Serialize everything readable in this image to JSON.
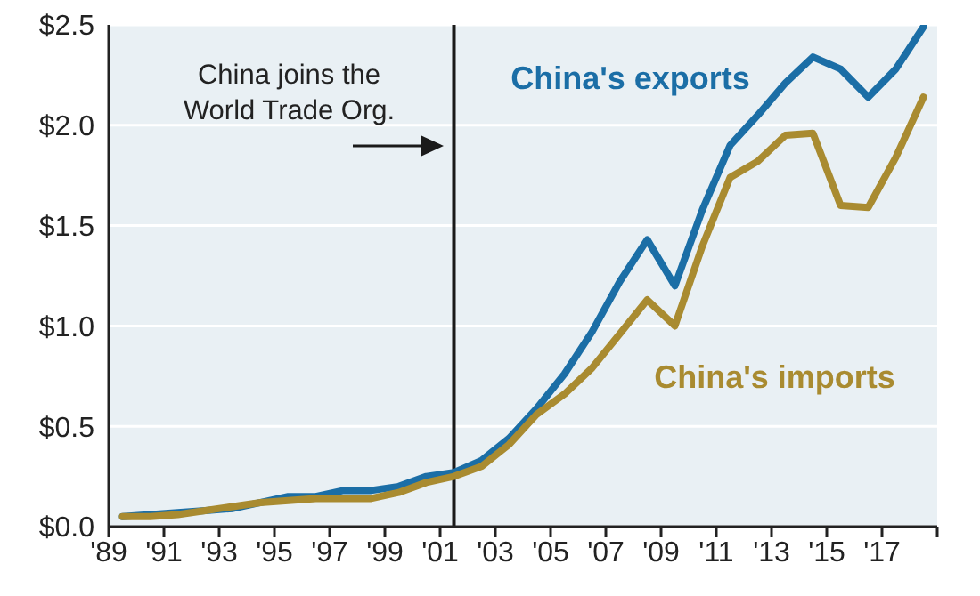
{
  "chart_data": {
    "type": "line",
    "x": [
      1989.5,
      1990.5,
      1991.5,
      1992.5,
      1993.5,
      1994.5,
      1995.5,
      1996.5,
      1997.5,
      1998.5,
      1999.5,
      2000.5,
      2001.5,
      2002.5,
      2003.5,
      2004.5,
      2005.5,
      2006.5,
      2007.5,
      2008.5,
      2009.5,
      2010.5,
      2011.5,
      2012.5,
      2013.5,
      2014.5,
      2015.5,
      2016.5,
      2017.5,
      2018.5
    ],
    "series": [
      {
        "name": "China's exports",
        "color": "#1b6ea6",
        "values": [
          0.05,
          0.06,
          0.07,
          0.08,
          0.09,
          0.12,
          0.15,
          0.15,
          0.18,
          0.18,
          0.2,
          0.25,
          0.27,
          0.33,
          0.44,
          0.59,
          0.76,
          0.97,
          1.22,
          1.43,
          1.2,
          1.58,
          1.9,
          2.05,
          2.21,
          2.34,
          2.28,
          2.14,
          2.28,
          2.49
        ]
      },
      {
        "name": "China's imports",
        "color": "#a98b30",
        "values": [
          0.05,
          0.05,
          0.06,
          0.08,
          0.1,
          0.12,
          0.13,
          0.14,
          0.14,
          0.14,
          0.17,
          0.22,
          0.25,
          0.3,
          0.41,
          0.56,
          0.66,
          0.79,
          0.96,
          1.13,
          1.0,
          1.4,
          1.74,
          1.82,
          1.95,
          1.96,
          1.6,
          1.59,
          1.84,
          2.14
        ]
      }
    ],
    "xlim": [
      1989,
      2019
    ],
    "xticks": [
      {
        "value": 1989,
        "label": "'89"
      },
      {
        "value": 1991,
        "label": "'91"
      },
      {
        "value": 1993,
        "label": "'93"
      },
      {
        "value": 1995,
        "label": "'95"
      },
      {
        "value": 1997,
        "label": "'97"
      },
      {
        "value": 1999,
        "label": "'99"
      },
      {
        "value": 2001,
        "label": "'01"
      },
      {
        "value": 2003,
        "label": "'03"
      },
      {
        "value": 2005,
        "label": "'05"
      },
      {
        "value": 2007,
        "label": "'07"
      },
      {
        "value": 2009,
        "label": "'09"
      },
      {
        "value": 2011,
        "label": "'11"
      },
      {
        "value": 2013,
        "label": "'13"
      },
      {
        "value": 2015,
        "label": "'15"
      },
      {
        "value": 2017,
        "label": "'17"
      },
      {
        "value": 2019,
        "label": null
      }
    ],
    "ylim": [
      0,
      2.5
    ],
    "yticks": [
      {
        "value": 0,
        "label": "$0.0"
      },
      {
        "value": 0.5,
        "label": "$0.5"
      },
      {
        "value": 1,
        "label": "$1.0"
      },
      {
        "value": 1.5,
        "label": "$1.5"
      },
      {
        "value": 2,
        "label": "$2.0"
      },
      {
        "value": 2.5,
        "label": "$2.5"
      }
    ],
    "ref_lines": [
      {
        "axis": "x",
        "value": 2001.5,
        "label": "China joins the World Trade Org.",
        "color": "#1a1a1a"
      }
    ],
    "grid": "y"
  }
}
